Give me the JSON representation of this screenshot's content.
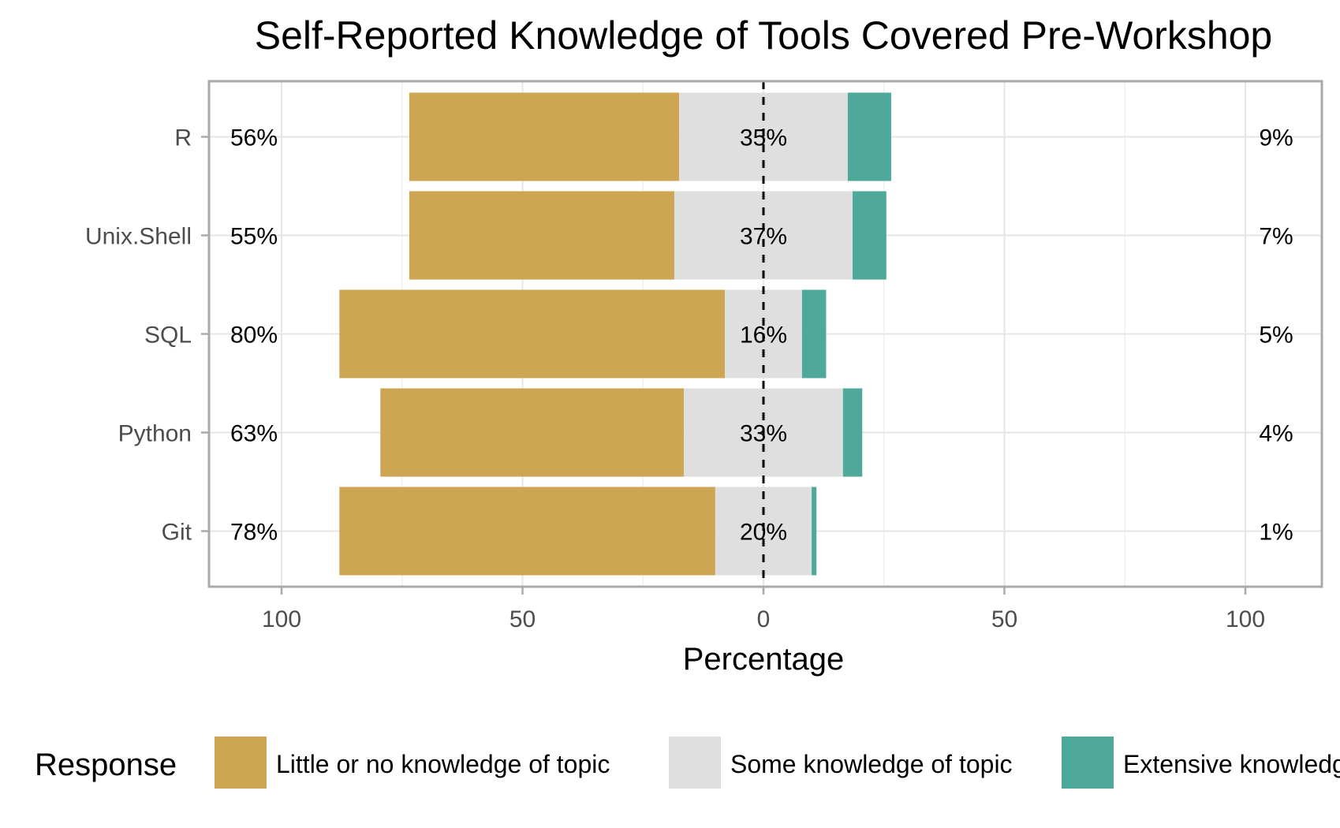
{
  "chart_data": {
    "type": "bar",
    "orientation": "horizontal-diverging",
    "title": "Self-Reported Knowledge of Tools Covered Pre-Workshop",
    "xlabel": "Percentage",
    "ylabel": "",
    "xlim": [
      -100,
      100
    ],
    "x_ticks": [
      -100,
      -50,
      0,
      50,
      100
    ],
    "x_tick_labels": [
      "100",
      "50",
      "0",
      "50",
      "100"
    ],
    "grid": true,
    "categories": [
      "R",
      "Unix.Shell",
      "SQL",
      "Python",
      "Git"
    ],
    "series": [
      {
        "name": "Little or no knowledge of topic",
        "color": "#cea552",
        "values": [
          56,
          55,
          80,
          63,
          78
        ]
      },
      {
        "name": "Some knowledge of topic",
        "color": "#dfdfdf",
        "values": [
          35,
          37,
          16,
          33,
          20
        ]
      },
      {
        "name": "Extensive knowledge of topic",
        "color": "#4ea99b",
        "values": [
          9,
          7,
          5,
          4,
          1
        ]
      }
    ],
    "left_labels": [
      "56%",
      "55%",
      "80%",
      "63%",
      "78%"
    ],
    "center_labels": [
      "35%",
      "37%",
      "16%",
      "33%",
      "20%"
    ],
    "right_labels": [
      "9%",
      "7%",
      "5%",
      "4%",
      "1%"
    ],
    "legend_title": "Response",
    "legend_position": "bottom"
  }
}
